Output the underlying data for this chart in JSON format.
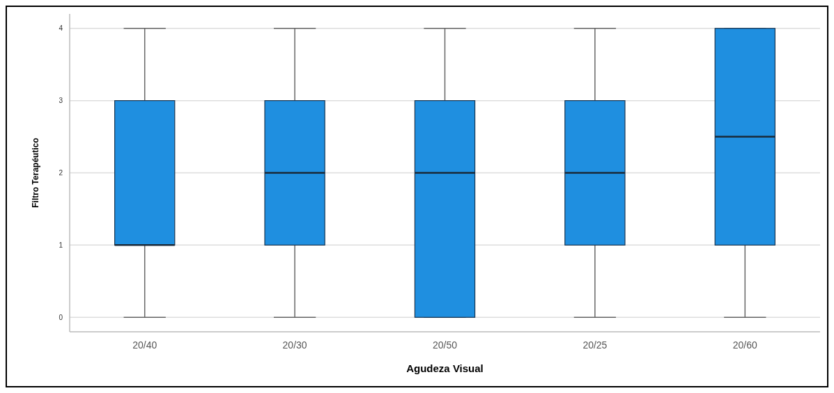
{
  "chart_data": {
    "type": "box",
    "xlabel": "Agudeza Visual",
    "ylabel": "Filtro Terapéutico",
    "categories": [
      "20/40",
      "20/30",
      "20/50",
      "20/25",
      "20/60"
    ],
    "boxes": [
      {
        "low": 0,
        "q1": 1,
        "median": 1,
        "q3": 3,
        "high": 4
      },
      {
        "low": 0,
        "q1": 1,
        "median": 2,
        "q3": 3,
        "high": 4
      },
      {
        "low": 0,
        "q1": 0,
        "median": 2,
        "q3": 3,
        "high": 4
      },
      {
        "low": 0,
        "q1": 1,
        "median": 2,
        "q3": 3,
        "high": 4
      },
      {
        "low": 0,
        "q1": 1,
        "median": 2.5,
        "q3": 4,
        "high": 4
      }
    ],
    "color": "#1f8fe0",
    "ylim": [
      -0.2,
      4.2
    ],
    "yticks": [
      0,
      1,
      2,
      3,
      4
    ],
    "grid": "y"
  }
}
